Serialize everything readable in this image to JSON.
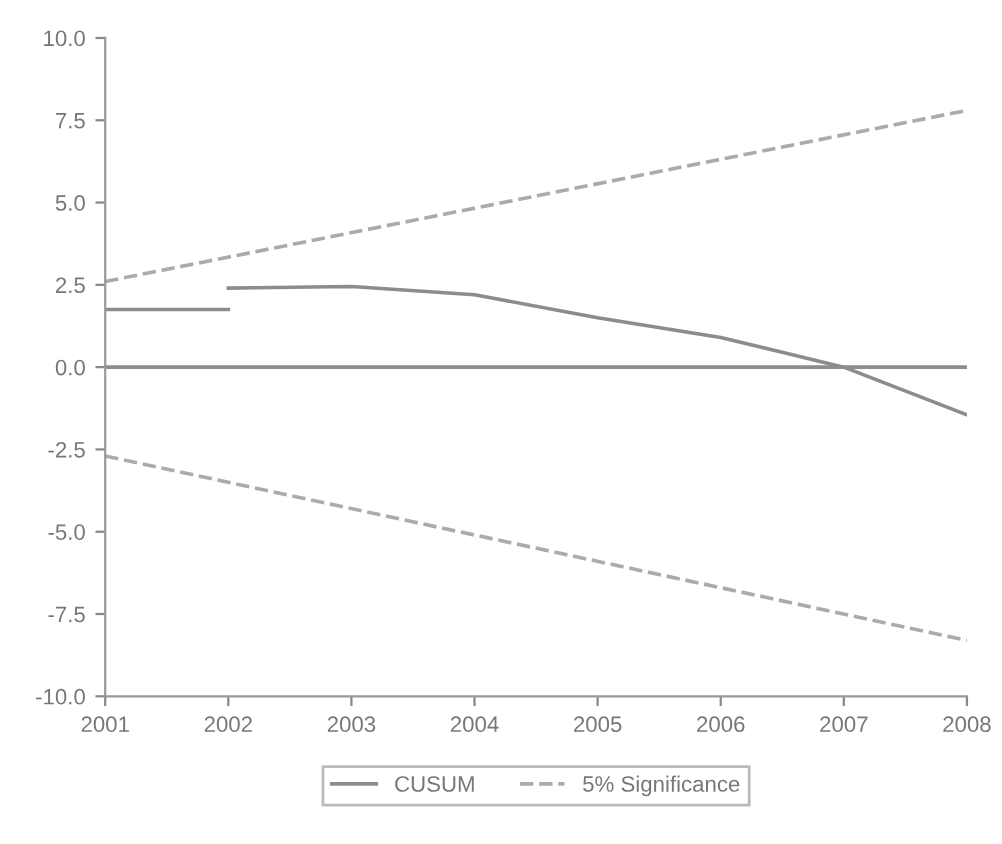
{
  "chart_data": {
    "type": "line",
    "series": [
      {
        "name": "CUSUM",
        "color": "#8c8c8c",
        "line_style": "solid",
        "x": [
          2002,
          2003,
          2004,
          2005,
          2006,
          2007,
          2008
        ],
        "values": [
          2.4,
          2.45,
          2.2,
          1.5,
          0.9,
          0.0,
          -1.45
        ]
      },
      {
        "color": "#8c8c8c",
        "line_style": "solid",
        "x": [
          2001,
          2002
        ],
        "values": [
          1.75,
          1.75
        ]
      },
      {
        "name": "5% Significance",
        "color": "#ababab",
        "line_style": "dashed",
        "x": [
          2001,
          2008
        ],
        "values": [
          2.6,
          7.8
        ]
      },
      {
        "color": "#ababab",
        "line_style": "dashed",
        "x": [
          2001,
          2008
        ],
        "values": [
          -2.7,
          -8.3
        ]
      }
    ],
    "xlim": [
      2001,
      2008
    ],
    "xticks": [
      2001,
      2002,
      2003,
      2004,
      2005,
      2006,
      2007,
      2008
    ],
    "ylim": [
      -10,
      10
    ],
    "yticks": [
      {
        "value": -10,
        "label": "-10.0"
      },
      {
        "value": -7.5,
        "label": "-7.5"
      },
      {
        "value": -5,
        "label": "-5.0"
      },
      {
        "value": -2.5,
        "label": "-2.5"
      },
      {
        "value": 0,
        "label": "0.0"
      },
      {
        "value": 2.5,
        "label": "2.5"
      },
      {
        "value": 5,
        "label": "5.0"
      },
      {
        "value": 7.5,
        "label": "7.5"
      },
      {
        "value": 10,
        "label": "10.0"
      }
    ],
    "ref_lines": [
      {
        "axis": "y",
        "value": 0,
        "color": "#8c8c8c",
        "line_style": "solid"
      }
    ],
    "legend": "bottom",
    "grid": false,
    "marker": "none"
  }
}
